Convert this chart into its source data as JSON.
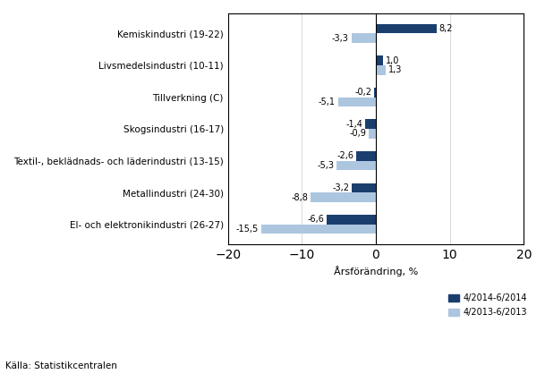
{
  "categories": [
    "El- och elektronikindustri (26-27)",
    "Metallindustri (24-30)",
    "Textil-, beklädnads- och läderindustri (13-15)",
    "Skogsindustri (16-17)",
    "Tillverkning (C)",
    "Livsmedelsindustri (10-11)",
    "Kemiskindustri (19-22)"
  ],
  "series_2014": [
    -6.6,
    -3.2,
    -2.6,
    -1.4,
    -0.2,
    1.0,
    8.2
  ],
  "series_2013": [
    -15.5,
    -8.8,
    -5.3,
    -0.9,
    -5.1,
    1.3,
    -3.3
  ],
  "color_2014": "#1a3f6f",
  "color_2013": "#adc6e0",
  "xlabel": "Årsförändring, %",
  "xlim": [
    -20,
    20
  ],
  "xticks": [
    -20,
    -10,
    0,
    10,
    20
  ],
  "legend_2014": "4/2014-6/2014",
  "legend_2013": "4/2013-6/2013",
  "source": "Källa: Statistikcentralen",
  "bar_height": 0.3,
  "label_offsets": [
    0.4,
    0.4,
    0.4,
    0.4,
    0.4,
    0.4,
    0.4
  ]
}
